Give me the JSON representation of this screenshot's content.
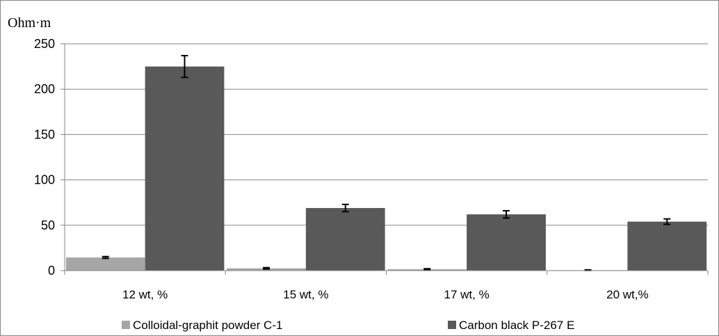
{
  "chart_data": {
    "type": "bar",
    "ylabel": "Ohm·m",
    "xlabel": "",
    "title": "",
    "ylim": [
      0,
      250
    ],
    "yticks": [
      0,
      50,
      100,
      150,
      200,
      250
    ],
    "grid": true,
    "legend_position": "bottom",
    "categories": [
      "12 wt, %",
      "15 wt, %",
      "17 wt, %",
      "20 wt,%"
    ],
    "series": [
      {
        "name": "Colloidal-graphit powder C-1",
        "color": "#a6a6a6",
        "values": [
          14.5,
          2.5,
          1.5,
          0.5
        ],
        "errors": [
          1.0,
          0.8,
          0.6,
          0.3
        ]
      },
      {
        "name": "Carbon black P-267 E",
        "color": "#595959",
        "values": [
          225,
          69,
          62,
          54
        ],
        "errors": [
          12,
          4,
          4,
          3
        ]
      }
    ]
  }
}
